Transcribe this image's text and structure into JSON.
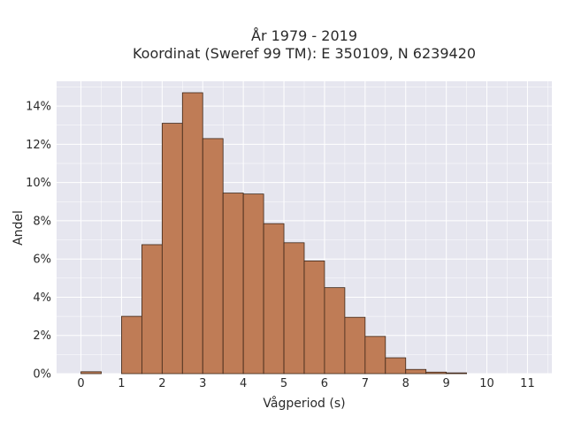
{
  "chart_data": {
    "type": "bar",
    "title_line1": "År 1979 - 2019",
    "title_line2": "Koordinat (Sweref 99 TM): E 350109, N 6239420",
    "xlabel": "Vågperiod (s)",
    "ylabel": "Andel",
    "bin_width": 0.5,
    "xlim": [
      -0.6,
      11.6
    ],
    "ylim": [
      0,
      0.153
    ],
    "x_ticks": [
      0,
      1,
      2,
      3,
      4,
      5,
      6,
      7,
      8,
      9,
      10,
      11
    ],
    "y_ticks": [
      0,
      0.02,
      0.04,
      0.06,
      0.08,
      0.1,
      0.12,
      0.14
    ],
    "y_tick_labels": [
      "0%",
      "2%",
      "4%",
      "6%",
      "8%",
      "10%",
      "12%",
      "14%"
    ],
    "bin_starts": [
      0,
      0.5,
      1,
      1.5,
      2,
      2.5,
      3,
      3.5,
      4,
      4.5,
      5,
      5.5,
      6,
      6.5,
      7,
      7.5,
      8,
      8.5,
      9,
      9.5
    ],
    "values": [
      0.001,
      0,
      0.03,
      0.0675,
      0.131,
      0.147,
      0.123,
      0.0945,
      0.094,
      0.0785,
      0.0685,
      0.059,
      0.045,
      0.0295,
      0.0195,
      0.0083,
      0.0022,
      0.0008,
      0.0004,
      0
    ],
    "grid": true,
    "colors": {
      "bar_fill": "#bf7c56",
      "bar_stroke": "#3d2618",
      "plot_bg": "#e6e6ef",
      "grid": "#ffffff"
    }
  }
}
